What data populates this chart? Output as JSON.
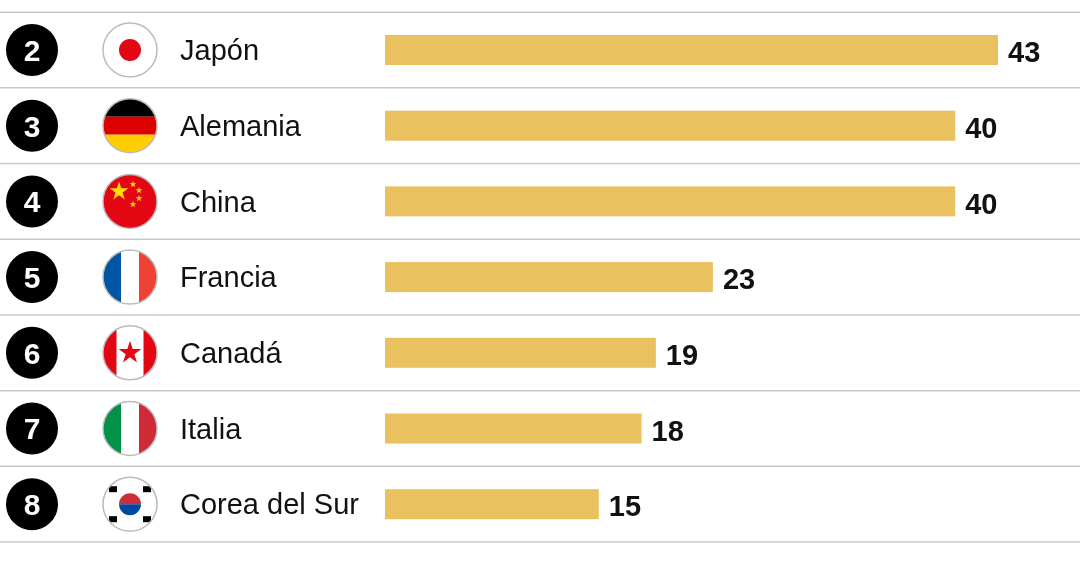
{
  "chart_data": {
    "type": "bar",
    "orientation": "horizontal",
    "categories": [
      "Japón",
      "Alemania",
      "China",
      "Francia",
      "Canadá",
      "Italia",
      "Corea del Sur"
    ],
    "values": [
      43,
      40,
      40,
      23,
      19,
      18,
      15
    ],
    "color": "#e9c15e",
    "data_labels": true,
    "annotations": [
      "2",
      "3",
      "4",
      "5",
      "6",
      "7",
      "8"
    ]
  }
}
